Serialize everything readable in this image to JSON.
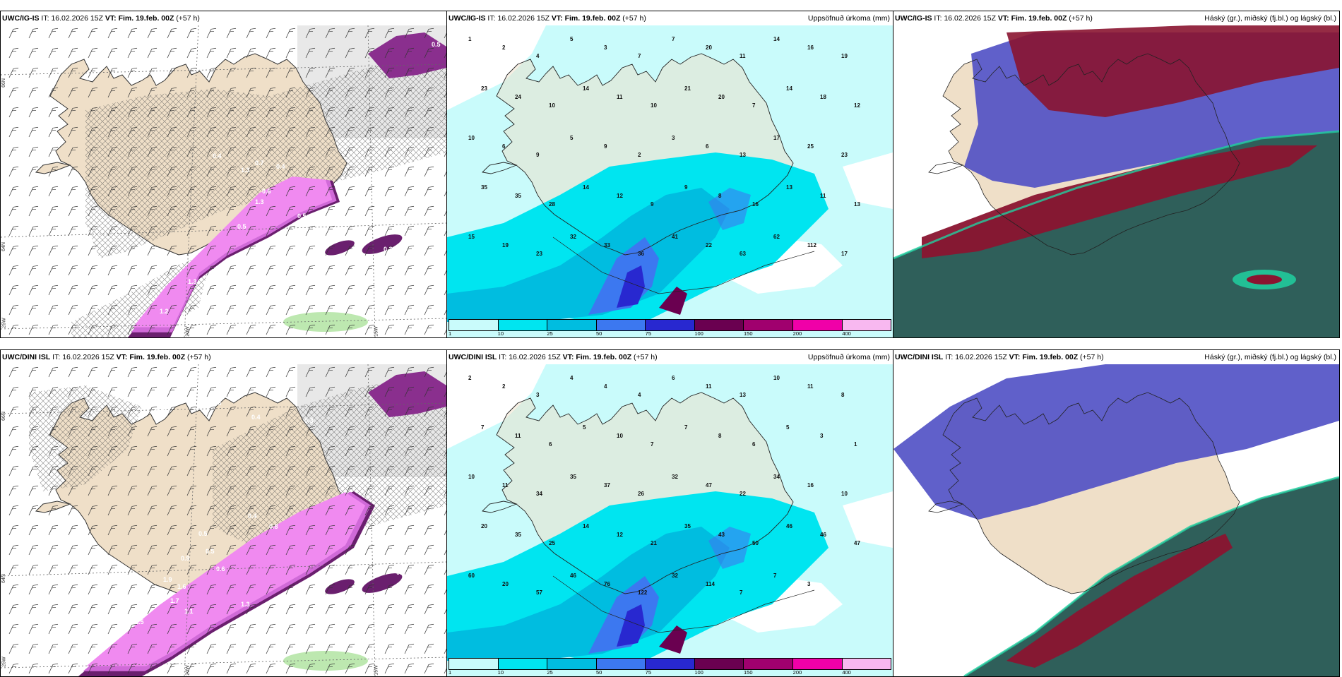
{
  "panels": [
    {
      "model": "UWC/IG-IS",
      "it_label": "IT:",
      "it_value": "16.02.2026 15Z",
      "vt_label": "VT:",
      "vt_value": "Fim. 19.feb. 00Z",
      "lead": "(+57 h)",
      "right_title": "",
      "type": "wind"
    },
    {
      "model": "UWC/IG-IS",
      "it_label": "IT:",
      "it_value": "16.02.2026 15Z",
      "vt_label": "VT:",
      "vt_value": "Fim. 19.feb. 00Z",
      "lead": "(+57 h)",
      "right_title": "Uppsöfnuð úrkoma (mm)",
      "type": "precip"
    },
    {
      "model": "UWC/IG-IS",
      "it_label": "IT:",
      "it_value": "16.02.2026 15Z",
      "vt_label": "VT:",
      "vt_value": "Fim. 19.feb. 00Z",
      "lead": "(+57 h)",
      "right_title": "Háský (gr.), miðský (fj.bl.) og lágský (bl.)",
      "type": "cloud"
    },
    {
      "model": "UWC/DINI ISL",
      "it_label": "IT:",
      "it_value": "16.02.2026 15Z",
      "vt_label": "VT:",
      "vt_value": "Fim. 19.feb. 00Z",
      "lead": "(+57 h)",
      "right_title": "",
      "type": "wind"
    },
    {
      "model": "UWC/DINI ISL",
      "it_label": "IT:",
      "it_value": "16.02.2026 15Z",
      "vt_label": "VT:",
      "vt_value": "Fim. 19.feb. 00Z",
      "lead": "(+57 h)",
      "right_title": "Uppsöfnuð úrkoma (mm)",
      "type": "precip"
    },
    {
      "model": "UWC/DINI ISL",
      "it_label": "IT:",
      "it_value": "16.02.2026 15Z",
      "vt_label": "VT:",
      "vt_value": "Fim. 19.feb. 00Z",
      "lead": "(+57 h)",
      "right_title": "Háský (gr.), miðský (fj.bl.) og lágský (bl.)",
      "type": "cloud"
    }
  ],
  "axis_labels": {
    "lat66": "66N",
    "lat64": "64N",
    "lon25": "25W",
    "lon20": "20W",
    "lon15": "15W"
  },
  "colorbar": {
    "ticks": [
      "1",
      "10",
      "25",
      "50",
      "75",
      "100",
      "150",
      "200",
      "400"
    ],
    "colors": [
      "#c9fbfb",
      "#00e5f0",
      "#00bde0",
      "#3c78f0",
      "#2828d0",
      "#6a0050",
      "#a0006e",
      "#f000a8",
      "#f8b8f0"
    ]
  },
  "precip_labels_top": [
    {
      "t": "1"
    },
    {
      "t": "2"
    },
    {
      "t": "4"
    },
    {
      "t": "5"
    },
    {
      "t": "3"
    },
    {
      "t": "7"
    },
    {
      "t": "7"
    },
    {
      "t": "20"
    },
    {
      "t": "11"
    },
    {
      "t": "14"
    },
    {
      "t": "16"
    },
    {
      "t": "19"
    },
    {
      "t": "23"
    },
    {
      "t": "24"
    },
    {
      "t": "10"
    },
    {
      "t": "14"
    },
    {
      "t": "11"
    },
    {
      "t": "10"
    },
    {
      "t": "21"
    },
    {
      "t": "20"
    },
    {
      "t": "7"
    },
    {
      "t": "14"
    },
    {
      "t": "18"
    },
    {
      "t": "12"
    },
    {
      "t": "10"
    },
    {
      "t": "6"
    },
    {
      "t": "9"
    },
    {
      "t": "5"
    },
    {
      "t": "9"
    },
    {
      "t": "2"
    },
    {
      "t": "3"
    },
    {
      "t": "6"
    },
    {
      "t": "13"
    },
    {
      "t": "17"
    },
    {
      "t": "25"
    },
    {
      "t": "23"
    },
    {
      "t": "35"
    },
    {
      "t": "35"
    },
    {
      "t": "28"
    },
    {
      "t": "14"
    },
    {
      "t": "12"
    },
    {
      "t": "9"
    },
    {
      "t": "9"
    },
    {
      "t": "8"
    },
    {
      "t": "16"
    },
    {
      "t": "13"
    },
    {
      "t": "11"
    },
    {
      "t": "13"
    },
    {
      "t": "15"
    },
    {
      "t": "19"
    },
    {
      "t": "23"
    },
    {
      "t": "32"
    },
    {
      "t": "33"
    },
    {
      "t": "36"
    },
    {
      "t": "41"
    },
    {
      "t": "22"
    },
    {
      "t": "63"
    },
    {
      "t": "62"
    },
    {
      "t": "112"
    },
    {
      "t": "17"
    }
  ],
  "precip_labels_bottom": [
    {
      "t": "2"
    },
    {
      "t": "2"
    },
    {
      "t": "3"
    },
    {
      "t": "4"
    },
    {
      "t": "4"
    },
    {
      "t": "4"
    },
    {
      "t": "6"
    },
    {
      "t": "11"
    },
    {
      "t": "13"
    },
    {
      "t": "10"
    },
    {
      "t": "11"
    },
    {
      "t": "8"
    },
    {
      "t": "7"
    },
    {
      "t": "11"
    },
    {
      "t": "6"
    },
    {
      "t": "5"
    },
    {
      "t": "10"
    },
    {
      "t": "7"
    },
    {
      "t": "7"
    },
    {
      "t": "8"
    },
    {
      "t": "6"
    },
    {
      "t": "5"
    },
    {
      "t": "3"
    },
    {
      "t": "1"
    },
    {
      "t": "10"
    },
    {
      "t": "11"
    },
    {
      "t": "34"
    },
    {
      "t": "35"
    },
    {
      "t": "37"
    },
    {
      "t": "26"
    },
    {
      "t": "32"
    },
    {
      "t": "47"
    },
    {
      "t": "22"
    },
    {
      "t": "34"
    },
    {
      "t": "16"
    },
    {
      "t": "10"
    },
    {
      "t": "20"
    },
    {
      "t": "35"
    },
    {
      "t": "25"
    },
    {
      "t": "14"
    },
    {
      "t": "12"
    },
    {
      "t": "21"
    },
    {
      "t": "35"
    },
    {
      "t": "43"
    },
    {
      "t": "50"
    },
    {
      "t": "46"
    },
    {
      "t": "46"
    },
    {
      "t": "47"
    },
    {
      "t": "60"
    },
    {
      "t": "20"
    },
    {
      "t": "57"
    },
    {
      "t": "46"
    },
    {
      "t": "76"
    },
    {
      "t": "122"
    },
    {
      "t": "32"
    },
    {
      "t": "114"
    },
    {
      "t": "7"
    },
    {
      "t": "7"
    },
    {
      "t": "3"
    }
  ],
  "wind_labels_top": [
    {
      "t": "0.5"
    },
    {
      "t": "0.6"
    },
    {
      "t": "0.4"
    },
    {
      "t": "0.7"
    },
    {
      "t": "1.3"
    },
    {
      "t": "0.4"
    },
    {
      "t": "0.5"
    },
    {
      "t": "0.3"
    },
    {
      "t": "0.4"
    },
    {
      "t": "1.2"
    },
    {
      "t": "1.3"
    },
    {
      "t": "0.4"
    },
    {
      "t": "1.3"
    },
    {
      "t": "1.0"
    },
    {
      "t": "0.7"
    },
    {
      "t": "0.5"
    },
    {
      "t": "1.3"
    },
    {
      "t": "0.5"
    }
  ],
  "wind_labels_bottom": [
    {
      "t": "0.5"
    },
    {
      "t": "0.7"
    },
    {
      "t": "0.6"
    },
    {
      "t": "0.4"
    },
    {
      "t": "0.3"
    },
    {
      "t": "0.9"
    },
    {
      "t": "0.5"
    },
    {
      "t": "1.6"
    },
    {
      "t": "1.9"
    },
    {
      "t": "1.7"
    },
    {
      "t": "2.5"
    },
    {
      "t": "1.1"
    },
    {
      "t": "0.2"
    },
    {
      "t": "0.4"
    },
    {
      "t": "0.8"
    },
    {
      "t": "0.5"
    },
    {
      "t": "0.6"
    },
    {
      "t": "1.3"
    },
    {
      "t": "0.5"
    }
  ]
}
